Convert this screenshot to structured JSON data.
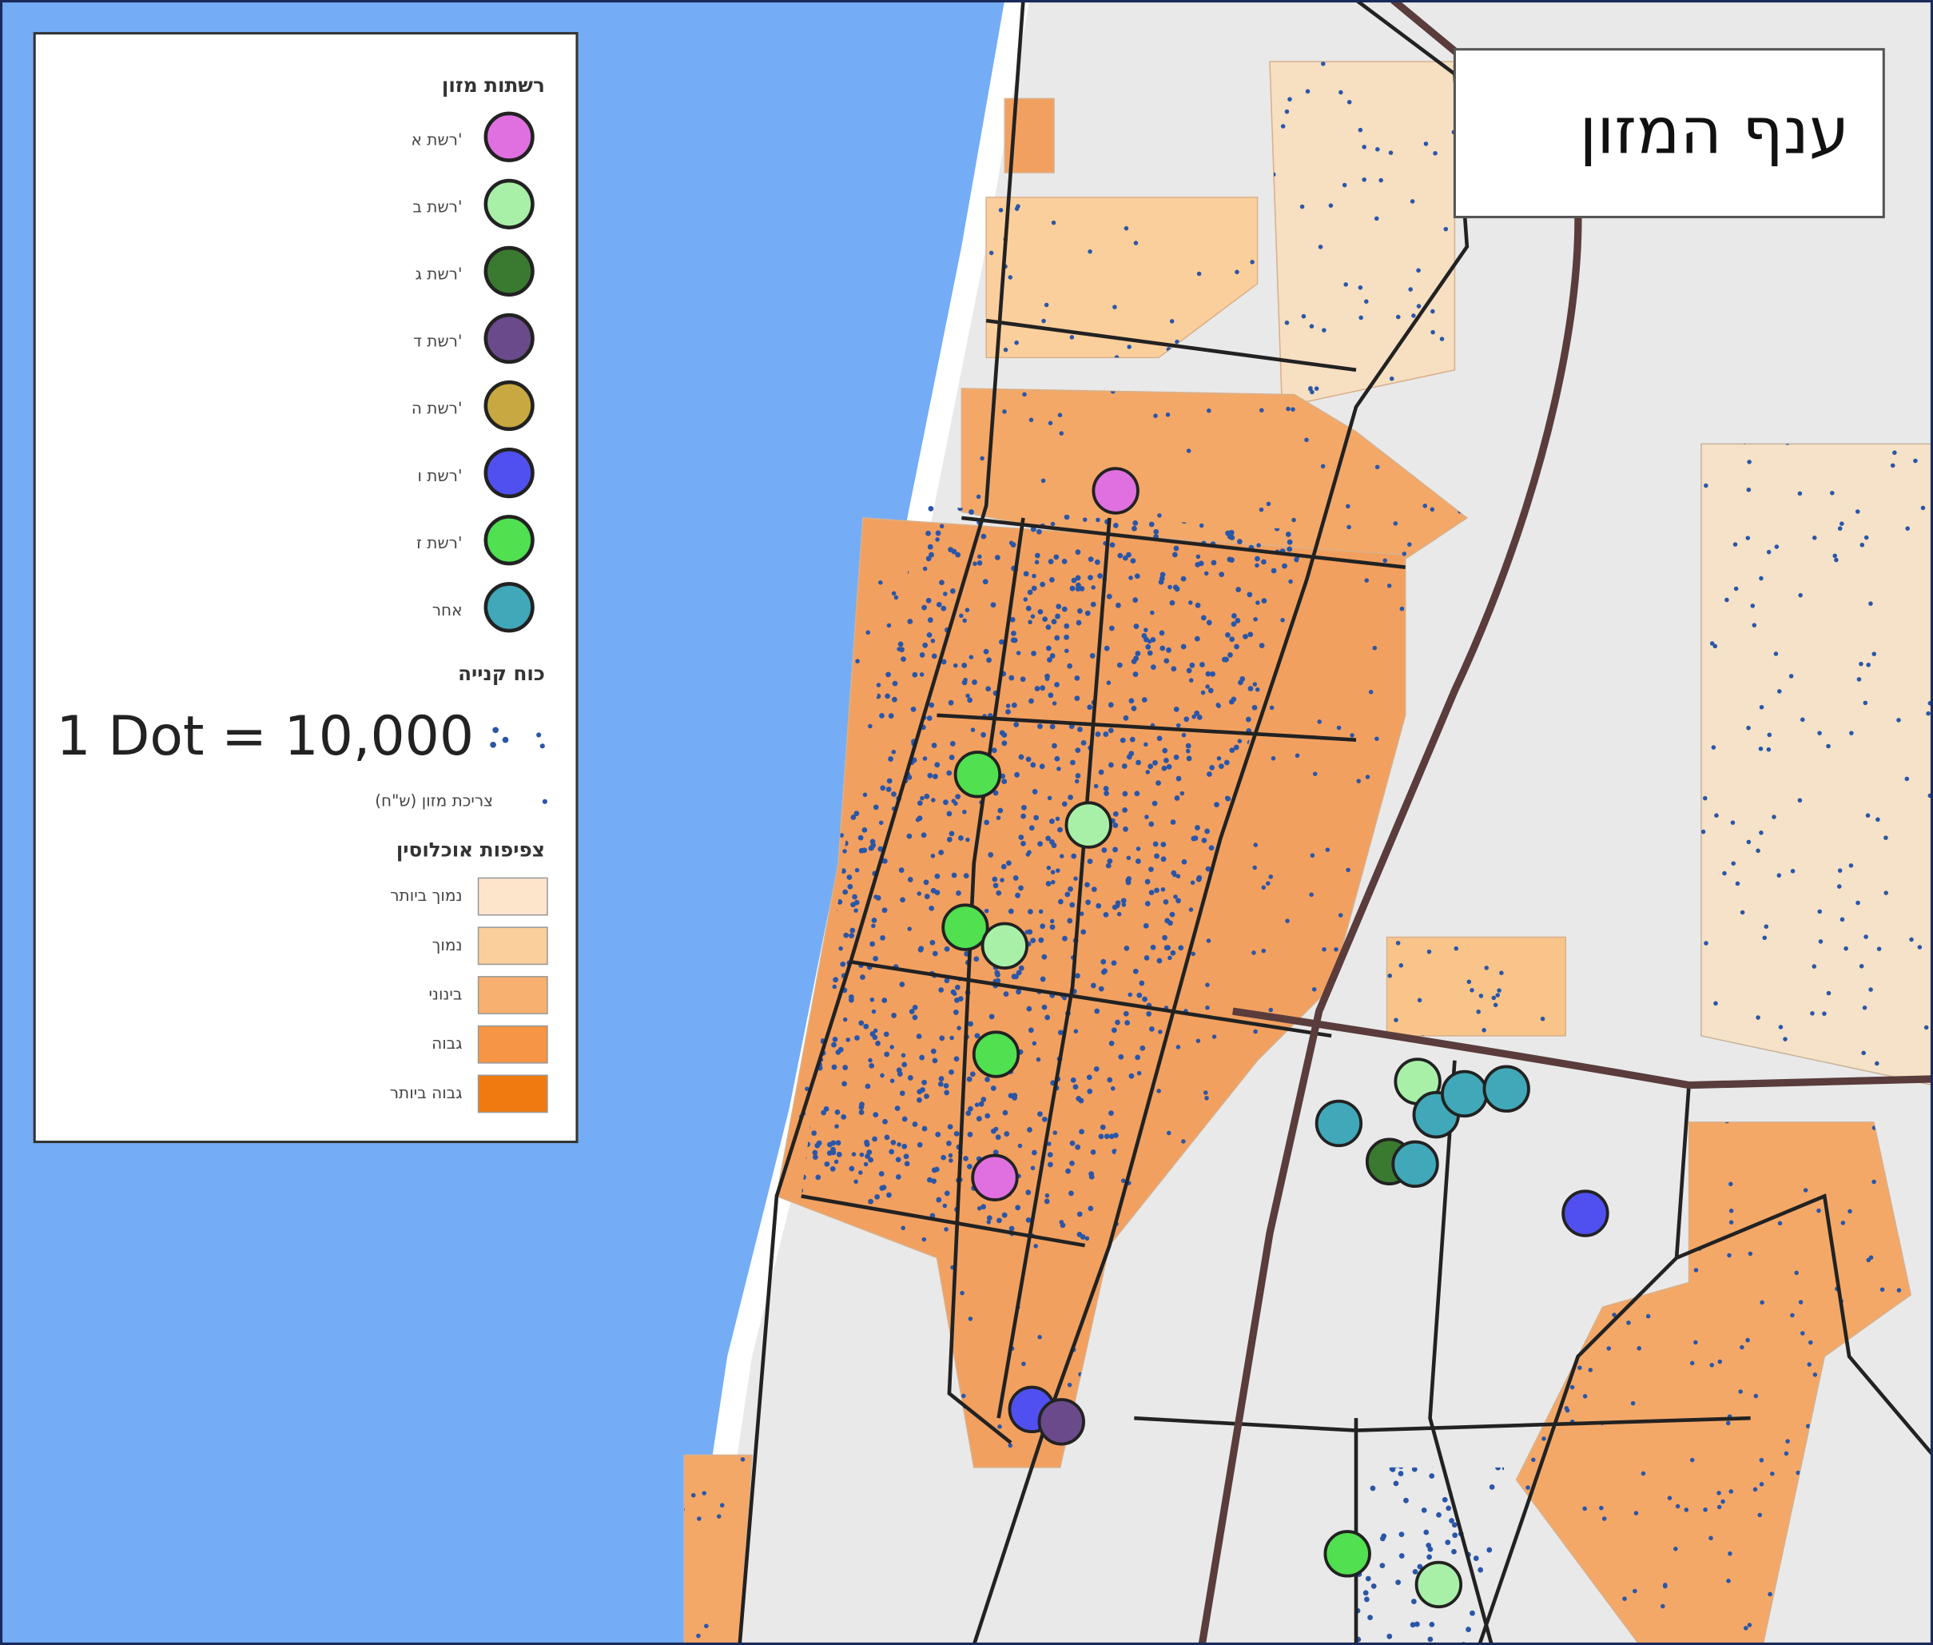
{
  "title": "ענף המזון",
  "legend": {
    "chains_title": "רשתות מזון",
    "chains": [
      {
        "label": "רשת א'",
        "color": "#e070e0"
      },
      {
        "label": "רשת ב'",
        "color": "#a8f0a8"
      },
      {
        "label": "רשת ג'",
        "color": "#3a7a30"
      },
      {
        "label": "רשת ד'",
        "color": "#6a4a8a"
      },
      {
        "label": "רשת ה'",
        "color": "#c8a840"
      },
      {
        "label": "רשת ו'",
        "color": "#5050f0"
      },
      {
        "label": "רשת ז'",
        "color": "#50e050"
      },
      {
        "label": "אחר",
        "color": "#40a8b8"
      }
    ],
    "purchasing_title": "כוח קנייה",
    "dot_scale": "1 Dot = 10,000",
    "dot_label": "צריכת מזון (ש\"ח)",
    "density_title": "צפיפות אוכלוסין",
    "density": [
      {
        "label": "נמוך ביותר",
        "color": "#fde5cc"
      },
      {
        "label": "נמוך",
        "color": "#fbcf9c"
      },
      {
        "label": "בינוני",
        "color": "#f8b070"
      },
      {
        "label": "גבוה",
        "color": "#f59545"
      },
      {
        "label": "גבוה ביותר",
        "color": "#f07a10"
      }
    ]
  }
}
